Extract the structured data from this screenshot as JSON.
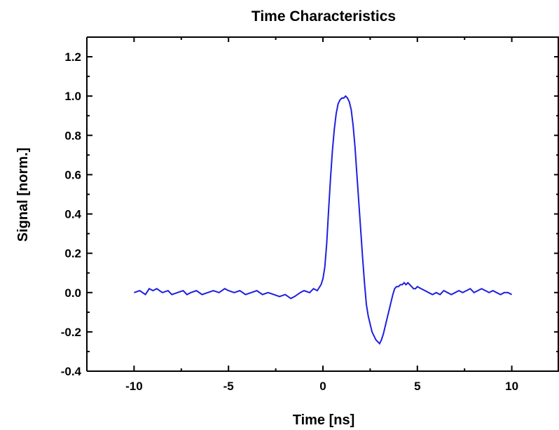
{
  "chart_data": {
    "type": "line",
    "title": "Time Characteristics",
    "xlabel": "Time [ns]",
    "ylabel": "Signal [norm.]",
    "xlim": [
      -12.5,
      12.5
    ],
    "ylim": [
      -0.4,
      1.3
    ],
    "x_ticks": [
      -10,
      -5,
      0,
      5,
      10
    ],
    "x_tick_labels": [
      "-10",
      "-5",
      "0",
      "5",
      "10"
    ],
    "y_ticks": [
      -0.4,
      -0.2,
      0.0,
      0.2,
      0.4,
      0.6,
      0.8,
      1.0,
      1.2
    ],
    "y_tick_labels": [
      "-0.4",
      "-0.2",
      "0.0",
      "0.2",
      "0.4",
      "0.6",
      "0.8",
      "1.0",
      "1.2"
    ],
    "grid": false,
    "legend": "none",
    "line_color": "#1f1fe0",
    "series": [
      {
        "x": [
          -10.0,
          -9.7,
          -9.4,
          -9.2,
          -9.0,
          -8.8,
          -8.5,
          -8.2,
          -8.0,
          -7.7,
          -7.4,
          -7.2,
          -7.0,
          -6.7,
          -6.4,
          -6.1,
          -5.8,
          -5.5,
          -5.2,
          -5.0,
          -4.7,
          -4.4,
          -4.1,
          -3.8,
          -3.5,
          -3.2,
          -2.9,
          -2.6,
          -2.3,
          -2.0,
          -1.7,
          -1.5,
          -1.2,
          -1.0,
          -0.7,
          -0.5,
          -0.3,
          -0.1,
          0.0,
          0.1,
          0.2,
          0.3,
          0.4,
          0.5,
          0.6,
          0.7,
          0.8,
          0.9,
          1.0,
          1.1,
          1.2,
          1.3,
          1.4,
          1.5,
          1.6,
          1.7,
          1.8,
          1.9,
          2.0,
          2.1,
          2.2,
          2.3,
          2.4,
          2.5,
          2.6,
          2.7,
          2.8,
          2.9,
          3.0,
          3.1,
          3.2,
          3.3,
          3.4,
          3.5,
          3.6,
          3.7,
          3.8,
          3.9,
          4.0,
          4.1,
          4.2,
          4.3,
          4.4,
          4.5,
          4.6,
          4.7,
          4.8,
          4.9,
          5.0,
          5.2,
          5.4,
          5.6,
          5.8,
          6.0,
          6.2,
          6.4,
          6.6,
          6.8,
          7.0,
          7.2,
          7.4,
          7.6,
          7.8,
          8.0,
          8.2,
          8.4,
          8.6,
          8.8,
          9.0,
          9.2,
          9.4,
          9.6,
          9.8,
          10.0
        ],
        "y": [
          0.0,
          0.01,
          -0.01,
          0.02,
          0.01,
          0.02,
          0.0,
          0.01,
          -0.01,
          0.0,
          0.01,
          -0.01,
          0.0,
          0.01,
          -0.01,
          0.0,
          0.01,
          0.0,
          0.02,
          0.01,
          0.0,
          0.01,
          -0.01,
          0.0,
          0.01,
          -0.01,
          0.0,
          -0.01,
          -0.02,
          -0.01,
          -0.03,
          -0.02,
          0.0,
          0.01,
          0.0,
          0.02,
          0.01,
          0.04,
          0.07,
          0.13,
          0.25,
          0.42,
          0.58,
          0.72,
          0.83,
          0.91,
          0.96,
          0.98,
          0.99,
          0.99,
          1.0,
          0.99,
          0.97,
          0.93,
          0.85,
          0.74,
          0.6,
          0.46,
          0.32,
          0.18,
          0.05,
          -0.06,
          -0.12,
          -0.16,
          -0.2,
          -0.22,
          -0.24,
          -0.25,
          -0.26,
          -0.24,
          -0.21,
          -0.17,
          -0.13,
          -0.09,
          -0.05,
          -0.01,
          0.02,
          0.03,
          0.03,
          0.04,
          0.04,
          0.05,
          0.04,
          0.05,
          0.04,
          0.03,
          0.02,
          0.02,
          0.03,
          0.02,
          0.01,
          0.0,
          -0.01,
          0.0,
          -0.01,
          0.01,
          0.0,
          -0.01,
          0.0,
          0.01,
          0.0,
          0.01,
          0.02,
          0.0,
          0.01,
          0.02,
          0.01,
          0.0,
          0.01,
          0.0,
          -0.01,
          0.0,
          0.0,
          -0.01
        ]
      }
    ]
  }
}
